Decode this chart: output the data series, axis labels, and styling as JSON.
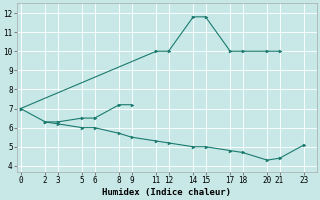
{
  "xlabel": "Humidex (Indice chaleur)",
  "line_color": "#1a7a6e",
  "bg_color": "#c8e8e8",
  "grid_color": "#b0d8d8",
  "lines": [
    {
      "x": [
        0,
        11,
        12,
        14,
        15,
        17,
        18,
        20,
        21
      ],
      "y": [
        7,
        10,
        10,
        11.8,
        11.8,
        10,
        10,
        10,
        10
      ]
    },
    {
      "x": [
        2,
        3,
        5,
        6,
        8,
        9
      ],
      "y": [
        6.3,
        6.3,
        6.5,
        6.5,
        7.2,
        7.2
      ]
    },
    {
      "x": [
        0,
        2,
        3,
        5,
        6,
        8,
        9,
        11,
        12,
        14,
        15,
        17,
        18,
        20,
        21,
        23
      ],
      "y": [
        7,
        6.3,
        6.2,
        6.0,
        6.0,
        5.7,
        5.5,
        5.3,
        5.2,
        5.0,
        5.0,
        4.8,
        4.7,
        4.3,
        4.4,
        5.1
      ]
    }
  ],
  "xticks": [
    0,
    2,
    3,
    5,
    6,
    8,
    9,
    11,
    12,
    14,
    15,
    17,
    18,
    20,
    21,
    23
  ],
  "yticks": [
    4,
    5,
    6,
    7,
    8,
    9,
    10,
    11,
    12
  ],
  "xlim": [
    -0.3,
    24.0
  ],
  "ylim": [
    3.7,
    12.5
  ]
}
